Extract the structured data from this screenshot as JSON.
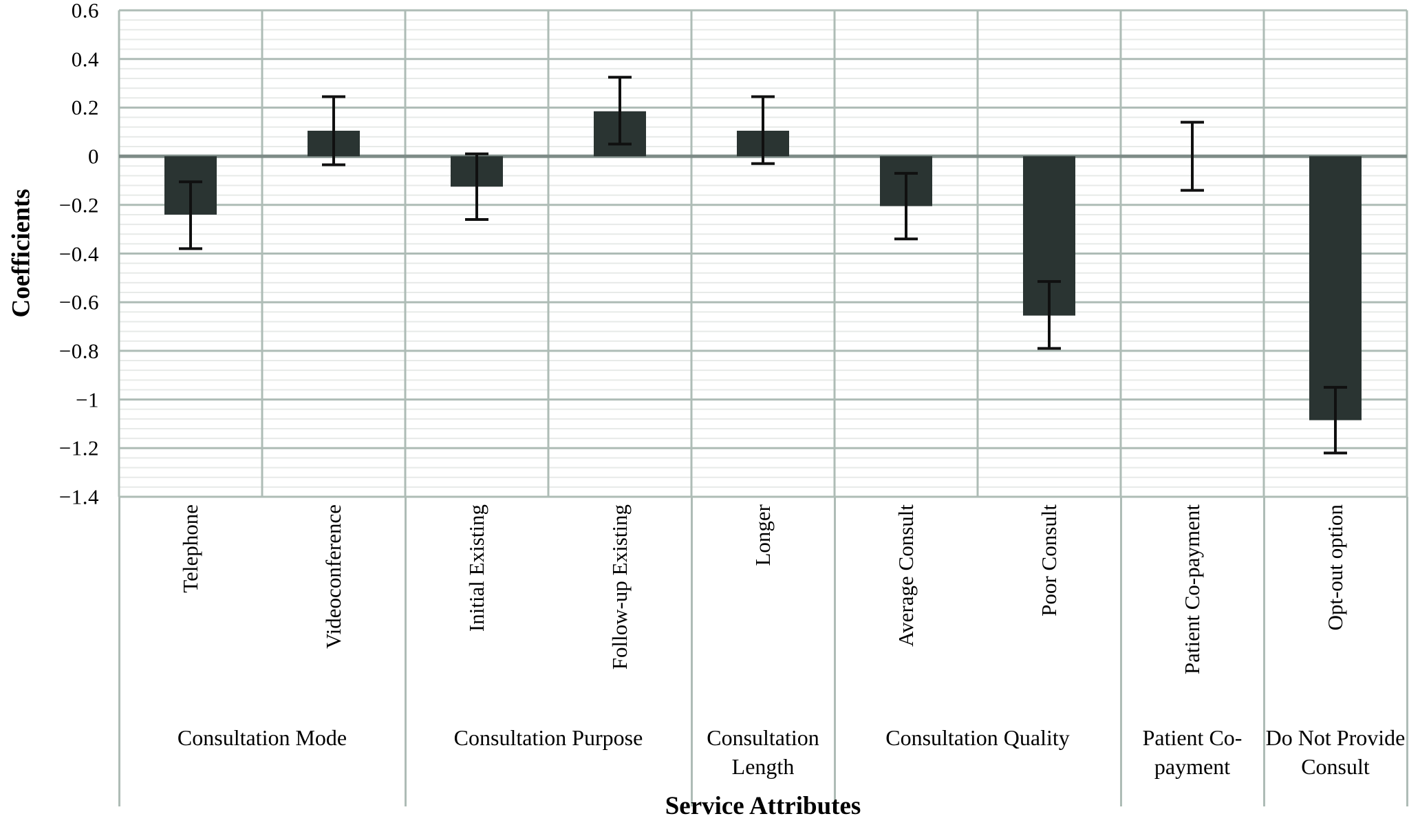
{
  "chart_data": {
    "type": "bar",
    "title": "",
    "xlabel": "Service Attributes",
    "ylabel": "Coefficients",
    "ylim": [
      -1.4,
      0.6
    ],
    "ytick_step": 0.2,
    "yminor_step": 0.04,
    "yticks": [
      "0.6",
      "0.4",
      "0.2",
      "0",
      "−0.2",
      "−0.4",
      "−0.6",
      "−0.8",
      "−1",
      "−1.2",
      "−1.4"
    ],
    "grid": "horizontal major+minor, vertical column separators",
    "legend_position": "none",
    "error_bars": "95% CI whiskers with caps",
    "groups": [
      {
        "label": "Consultation Mode",
        "items": [
          {
            "label": "Telephone",
            "value": -0.24,
            "ci_low": -0.38,
            "ci_high": -0.105
          },
          {
            "label": "Videoconference",
            "value": 0.105,
            "ci_low": -0.035,
            "ci_high": 0.245
          }
        ]
      },
      {
        "label": "Consultation Purpose",
        "items": [
          {
            "label": "Initial Existing",
            "value": -0.125,
            "ci_low": -0.26,
            "ci_high": 0.01
          },
          {
            "label": "Follow-up Existing",
            "value": 0.185,
            "ci_low": 0.05,
            "ci_high": 0.325
          }
        ]
      },
      {
        "label": "Consultation Length",
        "items": [
          {
            "label": "Longer",
            "value": 0.105,
            "ci_low": -0.03,
            "ci_high": 0.245
          }
        ]
      },
      {
        "label": "Consultation Quality",
        "items": [
          {
            "label": "Average Consult",
            "value": -0.205,
            "ci_low": -0.34,
            "ci_high": -0.07
          },
          {
            "label": "Poor Consult",
            "value": -0.655,
            "ci_low": -0.79,
            "ci_high": -0.515
          }
        ]
      },
      {
        "label": "Patient Co-payment",
        "items": [
          {
            "label": "Patient Co-payment",
            "value": 0.0,
            "ci_low": -0.14,
            "ci_high": 0.14
          }
        ]
      },
      {
        "label": "Do Not Provide Consult",
        "items": [
          {
            "label": "Opt-out option",
            "value": -1.085,
            "ci_low": -1.22,
            "ci_high": -0.95
          }
        ]
      }
    ]
  },
  "colors": {
    "bar_fill": "#2a3432",
    "error_bar": "#101010",
    "grid_major": "#aebcb6",
    "grid_minor": "#e7eae8",
    "zero_line": "#7d8b87",
    "background": "#ffffff"
  }
}
